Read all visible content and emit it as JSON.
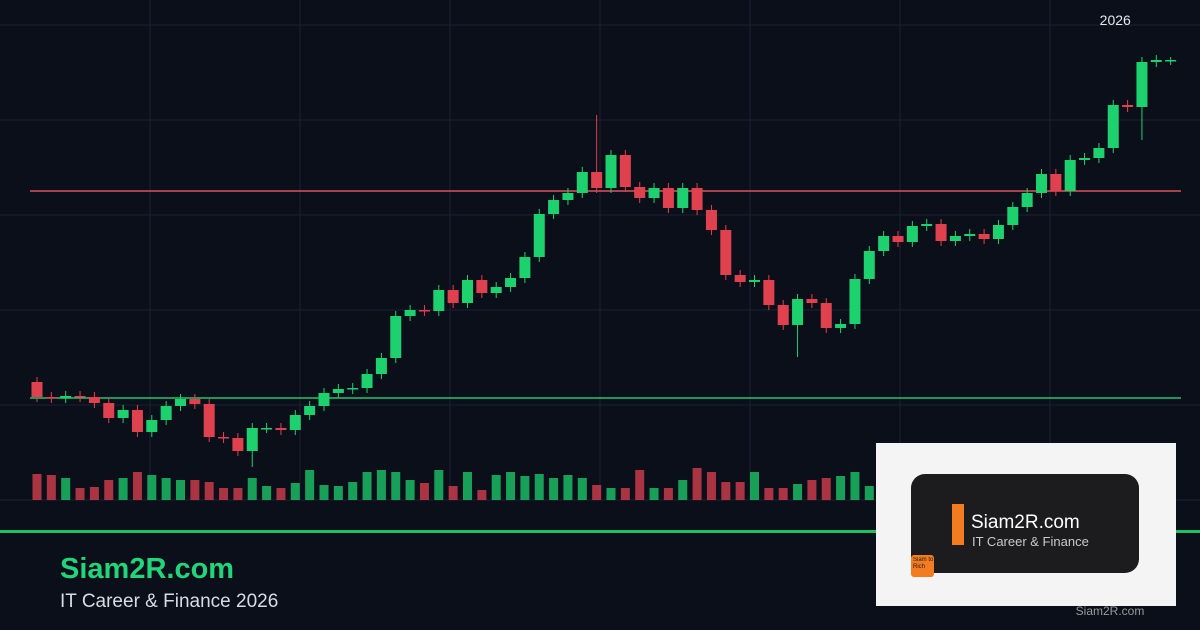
{
  "chart_data": {
    "type": "candlestick",
    "categories": [
      null,
      null,
      null,
      null,
      null,
      null,
      null,
      null,
      null,
      null,
      null,
      null,
      null,
      null,
      null,
      null,
      null,
      null,
      null,
      null,
      null,
      null,
      null,
      null,
      null,
      null,
      null,
      null,
      null,
      null,
      null,
      null,
      null,
      null,
      null,
      null,
      null,
      null,
      null,
      null,
      null,
      null,
      null,
      null,
      null,
      null,
      null,
      null,
      null,
      null,
      null,
      null,
      null,
      null,
      null,
      null,
      null,
      null,
      null,
      null,
      null,
      null,
      null,
      null,
      null,
      null,
      null,
      null,
      null,
      null,
      null,
      null,
      null,
      null,
      null,
      "2026",
      null,
      null,
      null,
      null
    ],
    "open": [
      118,
      103,
      102,
      104,
      103,
      97,
      82,
      90,
      68,
      80,
      94,
      101,
      96,
      63,
      62,
      49,
      72,
      72,
      70,
      85,
      94,
      107,
      111,
      112,
      126,
      142,
      184,
      190,
      189,
      210,
      197,
      220,
      207,
      213,
      222,
      243,
      286,
      300,
      307,
      328,
      312,
      345,
      313,
      302,
      312,
      292,
      312,
      290,
      270,
      225,
      218,
      220,
      195,
      175,
      201,
      197,
      172,
      176,
      221,
      249,
      264,
      258,
      274,
      276,
      259,
      264,
      266,
      261,
      275,
      293,
      307,
      326,
      309,
      340,
      342,
      352,
      395,
      393,
      438,
      440
    ],
    "high": [
      123,
      108,
      109,
      109,
      108,
      102,
      95,
      95,
      85,
      99,
      106,
      106,
      101,
      68,
      67,
      77,
      77,
      77,
      90,
      99,
      112,
      116,
      117,
      131,
      147,
      189,
      195,
      195,
      215,
      215,
      225,
      225,
      218,
      227,
      248,
      291,
      305,
      312,
      333,
      385,
      350,
      350,
      318,
      317,
      317,
      317,
      317,
      295,
      275,
      230,
      225,
      225,
      200,
      206,
      206,
      202,
      181,
      226,
      254,
      269,
      269,
      279,
      281,
      281,
      269,
      271,
      271,
      280,
      298,
      312,
      331,
      331,
      345,
      347,
      357,
      400,
      400,
      443,
      445,
      443
    ],
    "low": [
      98,
      97,
      97,
      98,
      92,
      77,
      77,
      63,
      63,
      75,
      89,
      91,
      58,
      57,
      44,
      33,
      67,
      65,
      65,
      80,
      89,
      102,
      106,
      107,
      121,
      137,
      179,
      184,
      184,
      192,
      192,
      202,
      202,
      208,
      217,
      238,
      281,
      295,
      302,
      307,
      307,
      308,
      297,
      297,
      287,
      287,
      285,
      265,
      220,
      213,
      213,
      190,
      170,
      143,
      192,
      167,
      167,
      171,
      216,
      244,
      253,
      253,
      269,
      254,
      254,
      259,
      256,
      256,
      270,
      288,
      302,
      304,
      304,
      335,
      337,
      347,
      388,
      360,
      433,
      435
    ],
    "close": [
      103,
      102,
      104,
      103,
      97,
      82,
      90,
      68,
      80,
      94,
      101,
      96,
      63,
      62,
      49,
      72,
      72,
      70,
      85,
      94,
      107,
      111,
      112,
      126,
      142,
      184,
      190,
      189,
      210,
      197,
      220,
      207,
      213,
      222,
      243,
      286,
      300,
      307,
      328,
      312,
      345,
      313,
      302,
      312,
      292,
      312,
      290,
      270,
      225,
      218,
      220,
      195,
      175,
      201,
      197,
      172,
      176,
      221,
      249,
      264,
      258,
      274,
      276,
      259,
      264,
      266,
      261,
      275,
      293,
      307,
      326,
      309,
      340,
      342,
      352,
      395,
      393,
      438,
      440,
      440
    ],
    "volume": [
      26,
      25,
      22,
      12,
      13,
      20,
      22,
      28,
      25,
      22,
      20,
      20,
      18,
      12,
      12,
      22,
      14,
      12,
      17,
      30,
      15,
      14,
      18,
      28,
      30,
      28,
      20,
      17,
      30,
      14,
      28,
      10,
      25,
      28,
      24,
      26,
      22,
      25,
      22,
      15,
      12,
      12,
      30,
      12,
      12,
      20,
      32,
      28,
      18,
      18,
      28,
      12,
      12,
      16,
      20,
      22,
      24,
      28,
      14,
      18,
      20,
      18,
      22,
      18,
      26,
      20,
      22,
      24,
      16,
      12,
      18,
      20,
      28,
      20,
      18,
      22,
      14,
      20,
      18,
      20
    ],
    "ylim": [
      0,
      500
    ],
    "levels": [
      {
        "value": 309,
        "color": "#e0505a"
      },
      {
        "value": 102,
        "color": "#22c36e"
      }
    ],
    "up_color": "#1ed16f",
    "down_color": "#e0414f"
  },
  "brand": {
    "title": "Siam2R.com",
    "subtitle": "IT Career & Finance 2026"
  },
  "logo": {
    "title": "Siam2R.com",
    "subtitle": "IT Career & Finance",
    "badge": "Siam to Rich",
    "watermark": "Siam2R.com"
  }
}
